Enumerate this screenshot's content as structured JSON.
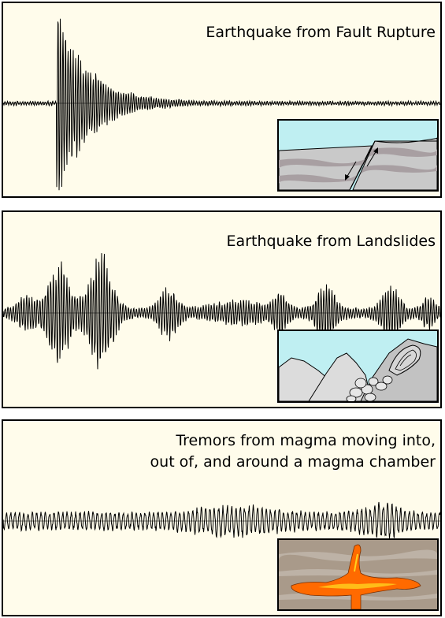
{
  "panels": [
    {
      "title_lines": [
        "Earthquake from Fault Rupture"
      ]
    },
    {
      "title_lines": [
        "Earthquake from Landslides"
      ]
    },
    {
      "title_lines": [
        "Tremors from magma moving into,",
        "out of, and around a magma chamber"
      ]
    }
  ],
  "colors": {
    "panel_bg": "#fffceb",
    "sky": "#bfeff2",
    "rock": "#c9c9c9",
    "rock_band": "#a89fa2",
    "earth": "#a99a8a",
    "magma": "#ff6a00",
    "magma_core": "#ffd21e"
  }
}
